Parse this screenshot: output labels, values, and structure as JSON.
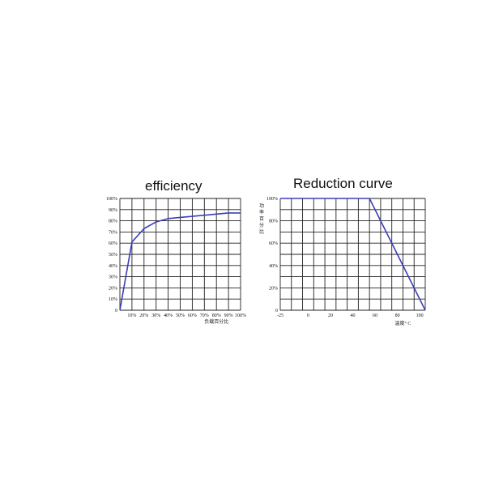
{
  "charts": [
    {
      "id": "efficiency",
      "type": "line",
      "title": "efficiency",
      "xlabel": "负载百分比",
      "ylabel": "",
      "x_ticks": [
        "10%",
        "20%",
        "30%",
        "40%",
        "50%",
        "60%",
        "70%",
        "80%",
        "90%",
        "100%"
      ],
      "y_ticks": [
        "0",
        "10%",
        "20%",
        "30%",
        "40%",
        "50%",
        "60%",
        "70%",
        "80%",
        "90%",
        "100%"
      ],
      "xlim": [
        0,
        100
      ],
      "ylim": [
        0,
        100
      ],
      "grid": true,
      "line_color": "#3b3fb8",
      "series": [
        {
          "x": [
            0,
            10,
            20,
            30,
            40,
            50,
            60,
            70,
            80,
            90,
            100
          ],
          "y": [
            0,
            61,
            73,
            79,
            82,
            83,
            84,
            85,
            86,
            87,
            87
          ]
        }
      ]
    },
    {
      "id": "reduction",
      "type": "line",
      "title": "Reduction curve",
      "xlabel": "温度° C",
      "ylabel": "功率百分比",
      "x_ticks": [
        "-25",
        "0",
        "20",
        "40",
        "60",
        "80",
        "100"
      ],
      "x_tick_values": [
        -25,
        0,
        20,
        40,
        60,
        80,
        100
      ],
      "y_ticks": [
        "0",
        "20%",
        "40%",
        "60%",
        "80%",
        "100%"
      ],
      "y_tick_values": [
        0,
        20,
        40,
        60,
        80,
        100
      ],
      "xlim": [
        -25,
        105
      ],
      "ylim": [
        0,
        100
      ],
      "grid": true,
      "line_color": "#3b3fb8",
      "series": [
        {
          "x": [
            -25,
            55,
            105
          ],
          "y": [
            100,
            100,
            0
          ]
        }
      ]
    }
  ],
  "chart_data": [
    {
      "type": "line",
      "title": "efficiency",
      "xlabel": "负载百分比",
      "x": [
        0,
        10,
        20,
        30,
        40,
        50,
        60,
        70,
        80,
        90,
        100
      ],
      "series": [
        {
          "values": [
            0,
            61,
            73,
            79,
            82,
            83,
            84,
            85,
            86,
            87,
            87
          ]
        }
      ],
      "xlim": [
        0,
        100
      ],
      "ylim": [
        0,
        100
      ],
      "grid": true
    },
    {
      "type": "line",
      "title": "Reduction curve",
      "xlabel": "温度° C",
      "ylabel": "功率百分比",
      "x": [
        -25,
        55,
        105
      ],
      "series": [
        {
          "values": [
            100,
            100,
            0
          ]
        }
      ],
      "xlim": [
        -25,
        105
      ],
      "ylim": [
        0,
        100
      ],
      "grid": true
    }
  ]
}
